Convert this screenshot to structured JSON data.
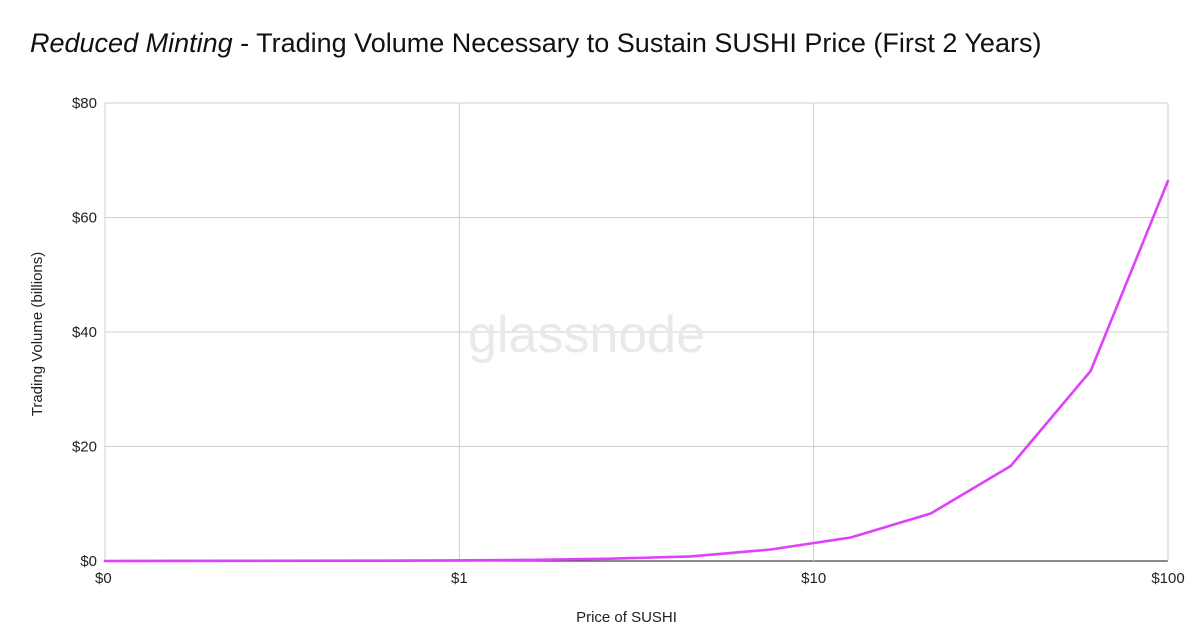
{
  "title": {
    "italic": "Reduced Minting",
    "rest": " - Trading Volume Necessary to Sustain SUSHI Price (First 2 Years)"
  },
  "watermark": "glassnode",
  "chart_data": {
    "type": "line",
    "title": "Reduced Minting - Trading Volume Necessary to Sustain SUSHI Price (First 2 Years)",
    "xlabel": "Price of SUSHI",
    "ylabel": "Trading Volume (billions)",
    "x_scale": "log",
    "x_ticks": [
      "$0",
      "$1",
      "$10",
      "$100"
    ],
    "y_ticks": [
      "$0",
      "$20",
      "$40",
      "$60",
      "$80"
    ],
    "ylim": [
      0,
      80
    ],
    "grid": true,
    "line_color": "#e040fb",
    "series": [
      {
        "x": [
          0.01,
          0.1,
          0.2,
          0.4,
          0.8,
          1.6,
          3.2,
          6.4,
          12.8,
          25.6,
          51.2,
          100
        ],
        "values": [
          0.0,
          0.05,
          0.1,
          0.2,
          0.4,
          0.8,
          2.0,
          4.1,
          8.3,
          16.6,
          33.2,
          66.4
        ]
      }
    ]
  }
}
